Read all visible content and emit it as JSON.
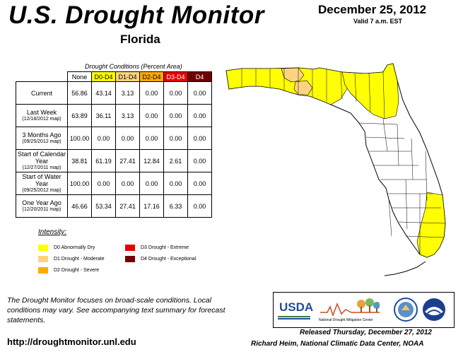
{
  "header": {
    "title": "U.S. Drought Monitor",
    "region": "Florida",
    "date": "December 25, 2012",
    "valid": "Valid 7 a.m. EST"
  },
  "table": {
    "caption": "Drought Conditions (Percent Area)",
    "columns": [
      "None",
      "D0-D4",
      "D1-D4",
      "D2-D4",
      "D3-D4",
      "D4"
    ],
    "rows": [
      {
        "label": "Current",
        "sub": "",
        "values": [
          "56.86",
          "43.14",
          "3.13",
          "0.00",
          "0.00",
          "0.00"
        ]
      },
      {
        "label": "Last Week",
        "sub": "(12/18/2012 map)",
        "values": [
          "63.89",
          "36.11",
          "3.13",
          "0.00",
          "0.00",
          "0.00"
        ]
      },
      {
        "label": "3 Months Ago",
        "sub": "(09/25/2012 map)",
        "values": [
          "100.00",
          "0.00",
          "0.00",
          "0.00",
          "0.00",
          "0.00"
        ]
      },
      {
        "label": "Start of Calendar Year",
        "sub": "(12/27/2011 map)",
        "values": [
          "38.81",
          "61.19",
          "27.41",
          "12.84",
          "2.61",
          "0.00"
        ]
      },
      {
        "label": "Start of Water Year",
        "sub": "(09/25/2012 map)",
        "values": [
          "100.00",
          "0.00",
          "0.00",
          "0.00",
          "0.00",
          "0.00"
        ]
      },
      {
        "label": "One Year Ago",
        "sub": "(12/20/2011 map)",
        "values": [
          "46.66",
          "53.34",
          "27.41",
          "17.16",
          "6.33",
          "0.00"
        ]
      }
    ]
  },
  "legend": {
    "title": "Intensity:",
    "items": [
      {
        "label": "D0 Abnormally Dry",
        "color": "#ffff00"
      },
      {
        "label": "D1 Drought - Moderate",
        "color": "#fcd37f"
      },
      {
        "label": "D2 Drought - Severe",
        "color": "#ffaa00"
      },
      {
        "label": "D3 Drought - Extreme",
        "color": "#e60000"
      },
      {
        "label": "D4 Drought - Exceptional",
        "color": "#730000"
      }
    ]
  },
  "footer": {
    "note": "The Drought Monitor focuses on broad-scale conditions. Local conditions may vary. See accompanying text summary for forecast statements.",
    "url": "http://droughtmonitor.unl.edu",
    "released": "Released Thursday, December 27, 2012",
    "author": "Richard Heim, National Climatic Data Center, NOAA"
  },
  "logos": {
    "usda": "USDA",
    "ndmc": "National Drought Mitigation Center"
  },
  "map": {
    "colors": {
      "none": "#ffffff",
      "d0": "#ffff00",
      "d1": "#fcd37f",
      "outline": "#000000"
    }
  }
}
